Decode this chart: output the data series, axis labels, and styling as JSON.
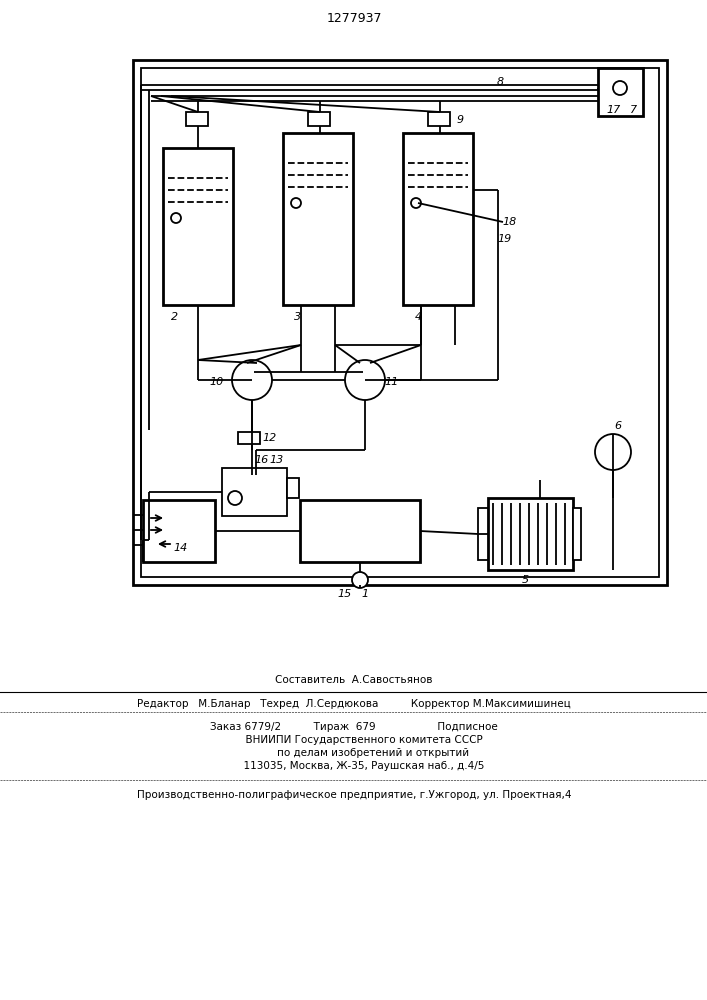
{
  "title": "1277937",
  "bg_color": "#ffffff",
  "line_color": "#000000",
  "footer_line0": "Составитель  А.Савостьянов",
  "footer_line1": "Редактор   М.Бланар   Техред  Л.Сердюкова          Корректор М.Максимишинец",
  "footer_line2": "Заказ 6779/2          Тираж  679                   Подписное",
  "footer_line3": "      ВНИИПИ Государственного комитета СССР",
  "footer_line4": "            по делам изобретений и открытий",
  "footer_line5": "      113035, Москва, Ж-35, Раушская наб., д.4/5",
  "footer_line6": "Производственно-полиграфическое предприятие, г.Ужгород, ул. Проектная,4"
}
